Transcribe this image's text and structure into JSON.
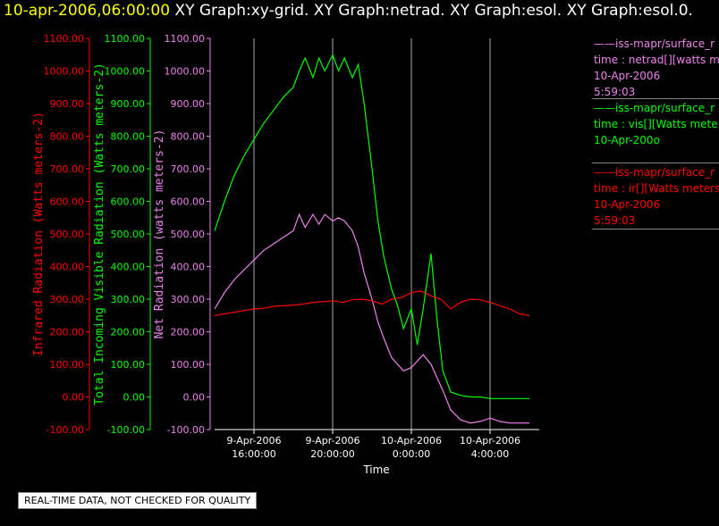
{
  "header": {
    "timestamp": "10-apr-2006,06:00:00",
    "rest": "  XY Graph:xy-grid.  XY Graph:netrad.  XY Graph:esol.  XY Graph:esol.0.",
    "timestamp_color": "#ffff00",
    "rest_color": "#ffffff"
  },
  "legend": [
    {
      "line1": "——iss-mapr/surface_r",
      "line2": "time : netrad[][watts m",
      "line3": "10-Apr-2006",
      "line4": "5:59:03",
      "color": "#ee82ee"
    },
    {
      "line1": "——iss-mapr/surface_r",
      "line2": "time : vis[][Watts mete",
      "line3": "10-Apr-200o",
      "line4": "",
      "color": "#00ff00"
    },
    {
      "line1": "——iss-mapr/surface_r",
      "line2": "time : ir[][Watts meters",
      "line3": "10-Apr-2006",
      "line4": "5:59:03",
      "color": "#ff0000"
    }
  ],
  "footer": "REAL-TIME DATA, NOT CHECKED FOR QUALITY",
  "chart_data": {
    "type": "line",
    "xlabel": "Time",
    "x_ticks": [
      {
        "line1": "9-Apr-2006",
        "line2": "16:00:00",
        "hour": 16
      },
      {
        "line1": "9-Apr-2006",
        "line2": "20:00:00",
        "hour": 20
      },
      {
        "line1": "10-Apr-2006",
        "line2": "0:00:00",
        "hour": 24
      },
      {
        "line1": "10-Apr-2006",
        "line2": "4:00:00",
        "hour": 28
      }
    ],
    "xlim_hours": [
      14.0,
      30.5
    ],
    "grid_x": true,
    "y_axes": [
      {
        "label": "Infrared Radiation (Watts meters-2)",
        "color": "#ff0000",
        "ylim": [
          -100,
          1100
        ],
        "ticks": [
          "-100.00",
          "0.00",
          "100.00",
          "200.00",
          "300.00",
          "400.00",
          "500.00",
          "600.00",
          "700.00",
          "800.00",
          "900.00",
          "1000.00",
          "1100.00"
        ]
      },
      {
        "label": "Total Incoming Visible Radiation (Watts meters-2)",
        "color": "#00ff00",
        "ylim": [
          -100,
          1100
        ],
        "ticks": [
          "-100.00",
          "0.00",
          "100.00",
          "200.00",
          "300.00",
          "400.00",
          "500.00",
          "600.00",
          "700.00",
          "800.00",
          "900.00",
          "1000.00",
          "1100.00"
        ]
      },
      {
        "label": "Net Radiation (watts meters-2)",
        "color": "#ee82ee",
        "ylim": [
          -100,
          1100
        ],
        "ticks": [
          "-100.00",
          "0.00",
          "100.00",
          "200.00",
          "300.00",
          "400.00",
          "500.00",
          "600.00",
          "700.00",
          "800.00",
          "900.00",
          "1000.00",
          "1100.00"
        ]
      }
    ],
    "series": [
      {
        "color": "#00ff00",
        "x": [
          14.0,
          14.5,
          15.0,
          15.5,
          16.0,
          16.5,
          17.0,
          17.5,
          18.0,
          18.3,
          18.6,
          19.0,
          19.3,
          19.6,
          20.0,
          20.3,
          20.6,
          21.0,
          21.3,
          21.6,
          22.0,
          22.3,
          22.6,
          23.0,
          23.3,
          23.6,
          24.0,
          24.3,
          24.6,
          25.0,
          25.3,
          25.6,
          26.0,
          26.5,
          27.0,
          27.5,
          28.0,
          28.5,
          29.0,
          29.5,
          30.0
        ],
        "y": [
          510,
          600,
          680,
          740,
          790,
          840,
          880,
          920,
          950,
          1000,
          1040,
          980,
          1040,
          1000,
          1050,
          1000,
          1040,
          980,
          1020,
          900,
          700,
          540,
          430,
          330,
          280,
          210,
          270,
          160,
          270,
          440,
          240,
          80,
          15,
          5,
          0,
          0,
          -5,
          -5,
          -5,
          -5,
          -5
        ]
      },
      {
        "color": "#ee82ee",
        "x": [
          14.0,
          14.5,
          15.0,
          15.5,
          16.0,
          16.5,
          17.0,
          17.5,
          18.0,
          18.3,
          18.6,
          19.0,
          19.3,
          19.6,
          20.0,
          20.3,
          20.6,
          21.0,
          21.3,
          21.6,
          22.0,
          22.3,
          22.6,
          23.0,
          23.3,
          23.6,
          24.0,
          24.3,
          24.6,
          25.0,
          25.3,
          25.6,
          26.0,
          26.5,
          27.0,
          27.5,
          28.0,
          28.5,
          29.0,
          29.5,
          30.0
        ],
        "y": [
          270,
          320,
          360,
          390,
          420,
          450,
          470,
          490,
          510,
          560,
          520,
          560,
          530,
          560,
          540,
          550,
          540,
          510,
          460,
          380,
          300,
          230,
          180,
          120,
          100,
          80,
          90,
          110,
          130,
          100,
          60,
          20,
          -40,
          -70,
          -80,
          -75,
          -65,
          -75,
          -80,
          -80,
          -80
        ]
      },
      {
        "color": "#ff0000",
        "x": [
          14.0,
          14.5,
          15.0,
          15.5,
          16.0,
          16.5,
          17.0,
          17.5,
          18.0,
          18.5,
          19.0,
          19.5,
          20.0,
          20.5,
          21.0,
          21.5,
          22.0,
          22.5,
          23.0,
          23.5,
          24.0,
          24.5,
          25.0,
          25.5,
          26.0,
          26.5,
          27.0,
          27.5,
          28.0,
          28.5,
          29.0,
          29.5,
          30.0
        ],
        "y": [
          250,
          255,
          260,
          265,
          270,
          272,
          278,
          280,
          282,
          285,
          290,
          292,
          295,
          290,
          298,
          300,
          295,
          285,
          300,
          305,
          320,
          325,
          310,
          300,
          270,
          290,
          300,
          298,
          290,
          280,
          270,
          255,
          250
        ]
      }
    ]
  }
}
